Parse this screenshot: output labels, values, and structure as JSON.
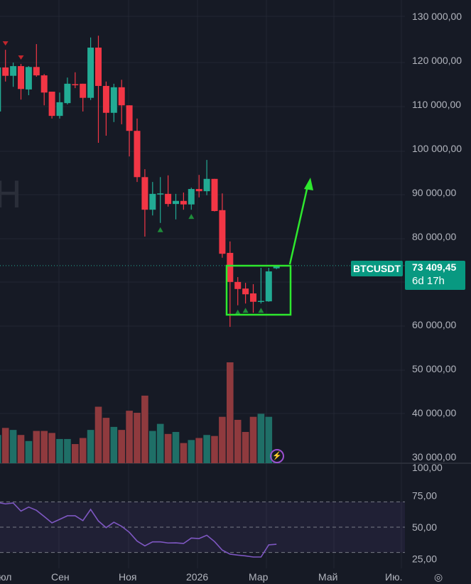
{
  "chart_data": {
    "type": "candlestick",
    "symbol": "BTCUSDT",
    "last_price": "73 409,45",
    "countdown": "6d 17h",
    "watermark": "H",
    "price_axis": {
      "ticks": [
        "130 000,00",
        "120 000,00",
        "110 000,00",
        "100 000,00",
        "90 000,00",
        "80 000,00",
        "60 000,00",
        "50 000,00",
        "40 000,00",
        "30 000,00"
      ],
      "ylim": [
        30000,
        130000
      ]
    },
    "time_axis": {
      "ticks": [
        "Июл",
        "Сен",
        "Ноя",
        "2026",
        "Мар",
        "Май",
        "Ию."
      ]
    },
    "candles": [
      {
        "o": 108400,
        "h": 119000,
        "l": 107000,
        "c": 118400
      },
      {
        "o": 118400,
        "h": 122400,
        "l": 115200,
        "c": 116500
      },
      {
        "o": 116500,
        "h": 119500,
        "l": 114000,
        "c": 118700
      },
      {
        "o": 118700,
        "h": 119200,
        "l": 111100,
        "c": 113500
      },
      {
        "o": 113400,
        "h": 118700,
        "l": 112100,
        "c": 118500
      },
      {
        "o": 118500,
        "h": 123700,
        "l": 116300,
        "c": 116600
      },
      {
        "o": 116600,
        "h": 116900,
        "l": 109800,
        "c": 112700
      },
      {
        "o": 112900,
        "h": 112900,
        "l": 106800,
        "c": 107400
      },
      {
        "o": 107400,
        "h": 112700,
        "l": 106800,
        "c": 110500
      },
      {
        "o": 110300,
        "h": 116100,
        "l": 110000,
        "c": 114700
      },
      {
        "o": 114600,
        "h": 117300,
        "l": 113700,
        "c": 114500
      },
      {
        "o": 114700,
        "h": 114700,
        "l": 108400,
        "c": 111500
      },
      {
        "o": 111500,
        "h": 125200,
        "l": 111000,
        "c": 122900
      },
      {
        "o": 122900,
        "h": 125600,
        "l": 101300,
        "c": 114200
      },
      {
        "o": 114200,
        "h": 115200,
        "l": 102900,
        "c": 108100
      },
      {
        "o": 108100,
        "h": 114700,
        "l": 106000,
        "c": 113900
      },
      {
        "o": 113900,
        "h": 115600,
        "l": 105500,
        "c": 109800
      },
      {
        "o": 109800,
        "h": 109800,
        "l": 98200,
        "c": 104000
      },
      {
        "o": 104000,
        "h": 106800,
        "l": 92400,
        "c": 93500
      },
      {
        "o": 93500,
        "h": 95300,
        "l": 80000,
        "c": 86100
      },
      {
        "o": 86100,
        "h": 92400,
        "l": 84800,
        "c": 89700
      },
      {
        "o": 89700,
        "h": 93500,
        "l": 83100,
        "c": 89800
      },
      {
        "o": 89700,
        "h": 93900,
        "l": 86800,
        "c": 87400
      },
      {
        "o": 87400,
        "h": 89700,
        "l": 83900,
        "c": 88100
      },
      {
        "o": 88100,
        "h": 90000,
        "l": 86100,
        "c": 87300
      },
      {
        "o": 87300,
        "h": 91100,
        "l": 86100,
        "c": 90800
      },
      {
        "o": 90800,
        "h": 94000,
        "l": 88900,
        "c": 90300
      },
      {
        "o": 90300,
        "h": 97400,
        "l": 89400,
        "c": 93100
      },
      {
        "o": 93100,
        "h": 93100,
        "l": 85700,
        "c": 85800
      },
      {
        "o": 86000,
        "h": 89800,
        "l": 75200,
        "c": 76100
      },
      {
        "o": 76300,
        "h": 78900,
        "l": 59500,
        "c": 69700
      },
      {
        "o": 69700,
        "h": 70800,
        "l": 64400,
        "c": 68100
      },
      {
        "o": 68200,
        "h": 69500,
        "l": 64800,
        "c": 66900
      },
      {
        "o": 67100,
        "h": 69200,
        "l": 62700,
        "c": 65200
      },
      {
        "o": 65300,
        "h": 72900,
        "l": 64800,
        "c": 65400
      },
      {
        "o": 65300,
        "h": 72900,
        "l": 65200,
        "c": 72100
      },
      {
        "o": 72800,
        "h": 73400,
        "l": 72600,
        "c": 73400
      }
    ],
    "volume_relative": [
      28,
      35,
      33,
      28,
      22,
      32,
      32,
      30,
      24,
      24,
      19,
      25,
      33,
      56,
      45,
      36,
      33,
      52,
      50,
      67,
      32,
      39,
      29,
      31,
      20,
      23,
      25,
      28,
      27,
      46,
      100,
      43,
      31,
      46,
      49,
      46,
      1
    ],
    "markers": [
      {
        "candle": 1,
        "type": "sell"
      },
      {
        "candle": 3,
        "type": "sell"
      },
      {
        "candle": 21,
        "type": "buy"
      },
      {
        "candle": 25,
        "type": "buy"
      },
      {
        "candle": 31,
        "type": "buy"
      },
      {
        "candle": 32,
        "type": "buy"
      },
      {
        "candle": 34,
        "type": "buy"
      }
    ],
    "rsi": {
      "values": [
        69.5,
        68.4,
        69.1,
        62.7,
        65.9,
        63.3,
        58.4,
        53.4,
        56.2,
        59.0,
        59.0,
        55.2,
        64.0,
        54.9,
        49.6,
        53.9,
        50.7,
        45.9,
        39.0,
        35.2,
        38.4,
        38.4,
        37.5,
        37.6,
        37.1,
        41.4,
        41.0,
        43.6,
        38.6,
        31.8,
        28.7,
        27.9,
        27.3,
        26.4,
        26.4,
        36.0,
        36.5
      ],
      "levels": [
        70,
        50,
        30
      ],
      "axis_ticks": [
        "100,00",
        "75,00",
        "50,00",
        "25,00"
      ]
    },
    "annotation": {
      "type": "rectangle-with-arrow",
      "color": "#2ee82e"
    },
    "colors": {
      "background": "#161a25",
      "up": "#22ab94",
      "down": "#f23645",
      "volume_up": "#1f6f67",
      "volume_down": "#8f3a3e",
      "rsi": "#7e57c2",
      "grid": "#232733"
    },
    "grid": true
  }
}
